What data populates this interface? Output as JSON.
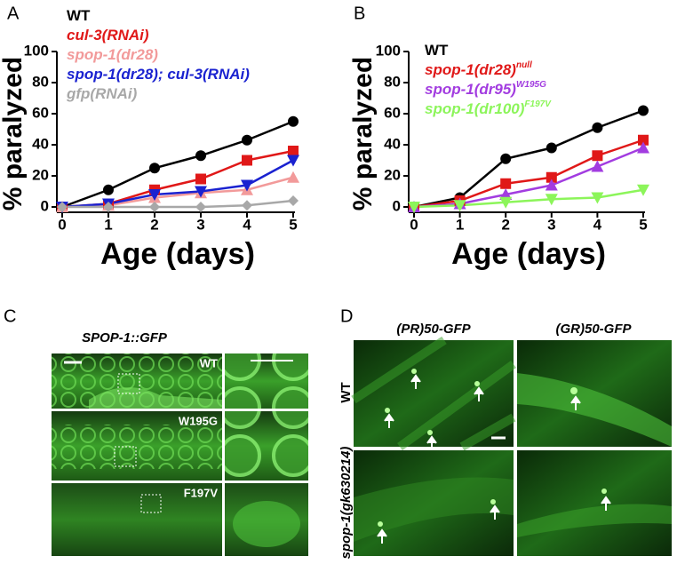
{
  "chart_data": [
    {
      "type": "line",
      "y_label": "% paralyzed",
      "x_label": "Age (days)",
      "x": [
        0,
        1,
        2,
        3,
        4,
        5
      ],
      "xlim": [
        0,
        5
      ],
      "xticks": [
        0,
        1,
        2,
        3,
        4,
        5
      ],
      "ylim": [
        0,
        100
      ],
      "yticks": [
        0,
        20,
        40,
        60,
        80,
        100
      ],
      "grid": false,
      "series": [
        {
          "name": "WT",
          "color": "#000000",
          "marker": "circle",
          "italic": false,
          "values": [
            0,
            11,
            25,
            33,
            43,
            55
          ]
        },
        {
          "name": "cul-3(RNAi)",
          "color": "#e01818",
          "marker": "square",
          "italic": true,
          "values": [
            0,
            2,
            11,
            18,
            30,
            36
          ]
        },
        {
          "name": "spop-1(dr28)",
          "color": "#f29a9a",
          "marker": "triangle-up",
          "italic": true,
          "values": [
            0,
            1,
            6,
            9,
            11,
            19
          ]
        },
        {
          "name": "spop-1(dr28); cul-3(RNAi)",
          "color": "#1a22d0",
          "marker": "triangle-down",
          "italic": true,
          "values": [
            0,
            2,
            8,
            10,
            14,
            30
          ]
        },
        {
          "name": "gfp(RNAi)",
          "color": "#a8a8a8",
          "marker": "diamond",
          "italic": true,
          "values": [
            0,
            0,
            0,
            0,
            1,
            4
          ]
        }
      ]
    },
    {
      "type": "line",
      "y_label": "% paralyzed",
      "x_label": "Age (days)",
      "x": [
        0,
        1,
        2,
        3,
        4,
        5
      ],
      "xlim": [
        0,
        5
      ],
      "xticks": [
        0,
        1,
        2,
        3,
        4,
        5
      ],
      "ylim": [
        0,
        100
      ],
      "yticks": [
        0,
        20,
        40,
        60,
        80,
        100
      ],
      "grid": false,
      "series": [
        {
          "name": "WT",
          "color": "#000000",
          "marker": "circle",
          "italic": false,
          "values": [
            0,
            6,
            31,
            38,
            51,
            62
          ]
        },
        {
          "name": "spop-1(dr28)",
          "superscript": "null",
          "color": "#e01818",
          "marker": "square",
          "italic": true,
          "values": [
            0,
            4,
            15,
            19,
            33,
            43
          ]
        },
        {
          "name": "spop-1(dr95)",
          "superscript": "W195G",
          "color": "#a23ce0",
          "marker": "triangle-up",
          "italic": true,
          "values": [
            0,
            2,
            8,
            14,
            26,
            38
          ]
        },
        {
          "name": "spop-1(dr100)",
          "superscript": "F197V",
          "color": "#8cf55a",
          "marker": "triangle-down",
          "italic": true,
          "values": [
            0,
            1,
            3,
            5,
            6,
            11
          ]
        }
      ]
    }
  ],
  "panel_labels": [
    "A",
    "B",
    "C",
    "D"
  ],
  "panel_c": {
    "title": "SPOP-1::GFP",
    "rows": [
      "WT",
      "W195G",
      "F197V"
    ]
  },
  "panel_d": {
    "columns": [
      "(PR)50-GFP",
      "(GR)50-GFP"
    ],
    "rows": [
      "WT",
      "spop-1(gk630214)"
    ]
  }
}
